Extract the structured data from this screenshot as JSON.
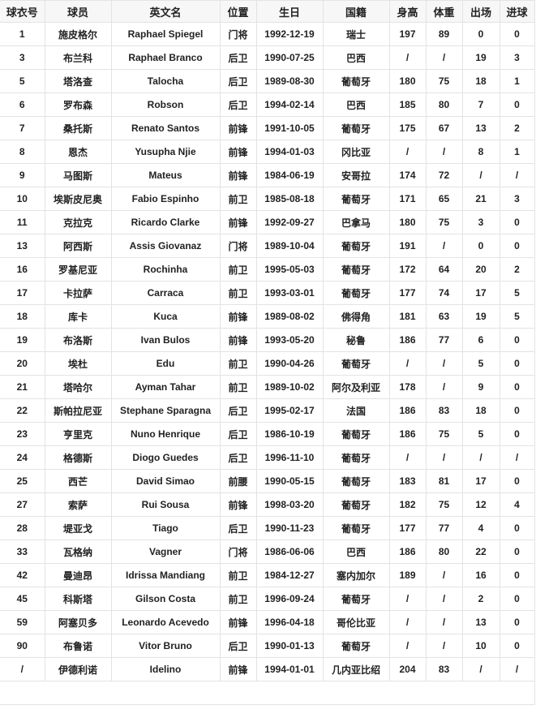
{
  "table": {
    "headers": [
      "球衣号",
      "球员",
      "英文名",
      "位置",
      "生日",
      "国籍",
      "身高",
      "体重",
      "出场",
      "进球"
    ],
    "rows": [
      [
        "1",
        "施皮格尔",
        "Raphael Spiegel",
        "门将",
        "1992-12-19",
        "瑞士",
        "197",
        "89",
        "0",
        "0"
      ],
      [
        "3",
        "布兰科",
        "Raphael Branco",
        "后卫",
        "1990-07-25",
        "巴西",
        "/",
        "/",
        "19",
        "3"
      ],
      [
        "5",
        "塔洛查",
        "Talocha",
        "后卫",
        "1989-08-30",
        "葡萄牙",
        "180",
        "75",
        "18",
        "1"
      ],
      [
        "6",
        "罗布森",
        "Robson",
        "后卫",
        "1994-02-14",
        "巴西",
        "185",
        "80",
        "7",
        "0"
      ],
      [
        "7",
        "桑托斯",
        "Renato Santos",
        "前锋",
        "1991-10-05",
        "葡萄牙",
        "175",
        "67",
        "13",
        "2"
      ],
      [
        "8",
        "恩杰",
        "Yusupha Njie",
        "前锋",
        "1994-01-03",
        "冈比亚",
        "/",
        "/",
        "8",
        "1"
      ],
      [
        "9",
        "马图斯",
        "Mateus",
        "前锋",
        "1984-06-19",
        "安哥拉",
        "174",
        "72",
        "/",
        "/"
      ],
      [
        "10",
        "埃斯皮尼奥",
        "Fabio Espinho",
        "前卫",
        "1985-08-18",
        "葡萄牙",
        "171",
        "65",
        "21",
        "3"
      ],
      [
        "11",
        "克拉克",
        "Ricardo Clarke",
        "前锋",
        "1992-09-27",
        "巴拿马",
        "180",
        "75",
        "3",
        "0"
      ],
      [
        "13",
        "阿西斯",
        "Assis Giovanaz",
        "门将",
        "1989-10-04",
        "葡萄牙",
        "191",
        "/",
        "0",
        "0"
      ],
      [
        "16",
        "罗基尼亚",
        "Rochinha",
        "前卫",
        "1995-05-03",
        "葡萄牙",
        "172",
        "64",
        "20",
        "2"
      ],
      [
        "17",
        "卡拉萨",
        "Carraca",
        "前卫",
        "1993-03-01",
        "葡萄牙",
        "177",
        "74",
        "17",
        "5"
      ],
      [
        "18",
        "库卡",
        "Kuca",
        "前锋",
        "1989-08-02",
        "佛得角",
        "181",
        "63",
        "19",
        "5"
      ],
      [
        "19",
        "布洛斯",
        "Ivan Bulos",
        "前锋",
        "1993-05-20",
        "秘鲁",
        "186",
        "77",
        "6",
        "0"
      ],
      [
        "20",
        "埃杜",
        "Edu",
        "前卫",
        "1990-04-26",
        "葡萄牙",
        "/",
        "/",
        "5",
        "0"
      ],
      [
        "21",
        "塔哈尔",
        "Ayman Tahar",
        "前卫",
        "1989-10-02",
        "阿尔及利亚",
        "178",
        "/",
        "9",
        "0"
      ],
      [
        "22",
        "斯帕拉尼亚",
        "Stephane Sparagna",
        "后卫",
        "1995-02-17",
        "法国",
        "186",
        "83",
        "18",
        "0"
      ],
      [
        "23",
        "亨里克",
        "Nuno Henrique",
        "后卫",
        "1986-10-19",
        "葡萄牙",
        "186",
        "75",
        "5",
        "0"
      ],
      [
        "24",
        "格德斯",
        "Diogo Guedes",
        "后卫",
        "1996-11-10",
        "葡萄牙",
        "/",
        "/",
        "/",
        "/"
      ],
      [
        "25",
        "西芒",
        "David Simao",
        "前腰",
        "1990-05-15",
        "葡萄牙",
        "183",
        "81",
        "17",
        "0"
      ],
      [
        "27",
        "索萨",
        "Rui Sousa",
        "前锋",
        "1998-03-20",
        "葡萄牙",
        "182",
        "75",
        "12",
        "4"
      ],
      [
        "28",
        "堤亚戈",
        "Tiago",
        "后卫",
        "1990-11-23",
        "葡萄牙",
        "177",
        "77",
        "4",
        "0"
      ],
      [
        "33",
        "瓦格纳",
        "Vagner",
        "门将",
        "1986-06-06",
        "巴西",
        "186",
        "80",
        "22",
        "0"
      ],
      [
        "42",
        "曼迪昂",
        "Idrissa Mandiang",
        "前卫",
        "1984-12-27",
        "塞内加尔",
        "189",
        "/",
        "16",
        "0"
      ],
      [
        "45",
        "科斯塔",
        "Gilson Costa",
        "前卫",
        "1996-09-24",
        "葡萄牙",
        "/",
        "/",
        "2",
        "0"
      ],
      [
        "59",
        "阿塞贝多",
        "Leonardo Acevedo",
        "前锋",
        "1996-04-18",
        "哥伦比亚",
        "/",
        "/",
        "13",
        "0"
      ],
      [
        "90",
        "布鲁诺",
        "Vitor Bruno",
        "后卫",
        "1990-01-13",
        "葡萄牙",
        "/",
        "/",
        "10",
        "0"
      ],
      [
        "/",
        "伊德利诺",
        "Idelino",
        "前锋",
        "1994-01-01",
        "几内亚比绍",
        "204",
        "83",
        "/",
        "/"
      ]
    ]
  }
}
